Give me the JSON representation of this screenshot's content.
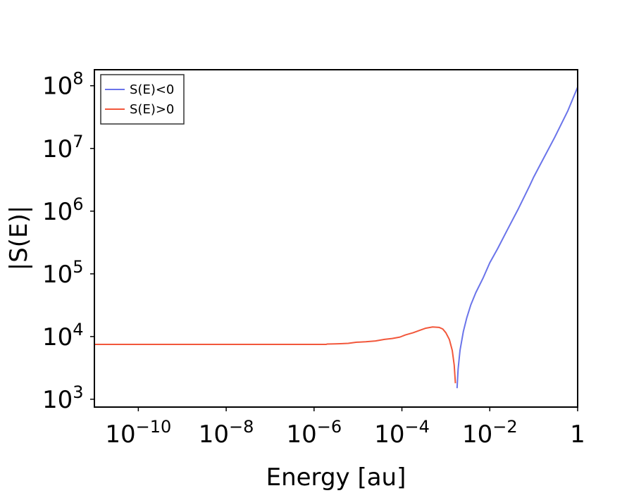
{
  "chart_data": {
    "type": "line",
    "title": "",
    "xlabel": "Energy [au]",
    "ylabel": "|S(E)|",
    "xscale": "log",
    "yscale": "log",
    "xlim": [
      1e-11,
      1
    ],
    "ylim": [
      750,
      180000000
    ],
    "grid": false,
    "legend_position": "top-left",
    "x_ticks": [
      {
        "value": 1e-10,
        "base": "10",
        "exp": "−10"
      },
      {
        "value": 1e-08,
        "base": "10",
        "exp": "−8"
      },
      {
        "value": 1e-06,
        "base": "10",
        "exp": "−6"
      },
      {
        "value": 0.0001,
        "base": "10",
        "exp": "−4"
      },
      {
        "value": 0.01,
        "base": "10",
        "exp": "−2"
      },
      {
        "value": 1,
        "base": "1",
        "exp": ""
      }
    ],
    "y_ticks": [
      {
        "value": 1000,
        "base": "10",
        "exp": "3"
      },
      {
        "value": 10000,
        "base": "10",
        "exp": "4"
      },
      {
        "value": 100000,
        "base": "10",
        "exp": "5"
      },
      {
        "value": 1000000,
        "base": "10",
        "exp": "6"
      },
      {
        "value": 10000000,
        "base": "10",
        "exp": "7"
      },
      {
        "value": 100000000,
        "base": "10",
        "exp": "8"
      }
    ],
    "series": [
      {
        "name": "S(E)<0",
        "color": "#6a74ea",
        "x": [
          0.0018,
          0.0019,
          0.0021,
          0.0025,
          0.003,
          0.0037,
          0.0048,
          0.007,
          0.01,
          0.015,
          0.025,
          0.045,
          0.08,
          0.1,
          0.15,
          0.3,
          0.6,
          1.0
        ],
        "y": [
          1500,
          3000,
          6000,
          12000,
          20000,
          32000,
          50000,
          85000,
          150000,
          250000,
          500000,
          1100000,
          2500000,
          3500000,
          6000000,
          15000000,
          40000000,
          95000000
        ]
      },
      {
        "name": "S(E)>0",
        "color": "#f2573b",
        "x": [
          1e-11,
          1e-10,
          1e-09,
          1e-08,
          1e-07,
          1e-06,
          1.9e-06,
          2e-06,
          3e-06,
          4e-06,
          6e-06,
          9e-06,
          1.5e-05,
          2.5e-05,
          4e-05,
          6e-05,
          9e-05,
          0.00012,
          0.00018,
          0.00025,
          0.00035,
          0.0005,
          0.0007,
          0.00085,
          0.001,
          0.0012,
          0.0014,
          0.00155,
          0.00165
        ],
        "y": [
          7500,
          7500,
          7500,
          7500,
          7500,
          7500,
          7500,
          7600,
          7650,
          7700,
          7800,
          8100,
          8250,
          8500,
          9000,
          9300,
          9800,
          10600,
          11500,
          12500,
          13600,
          14200,
          14000,
          13200,
          11500,
          9000,
          6000,
          3500,
          1800
        ]
      }
    ]
  }
}
